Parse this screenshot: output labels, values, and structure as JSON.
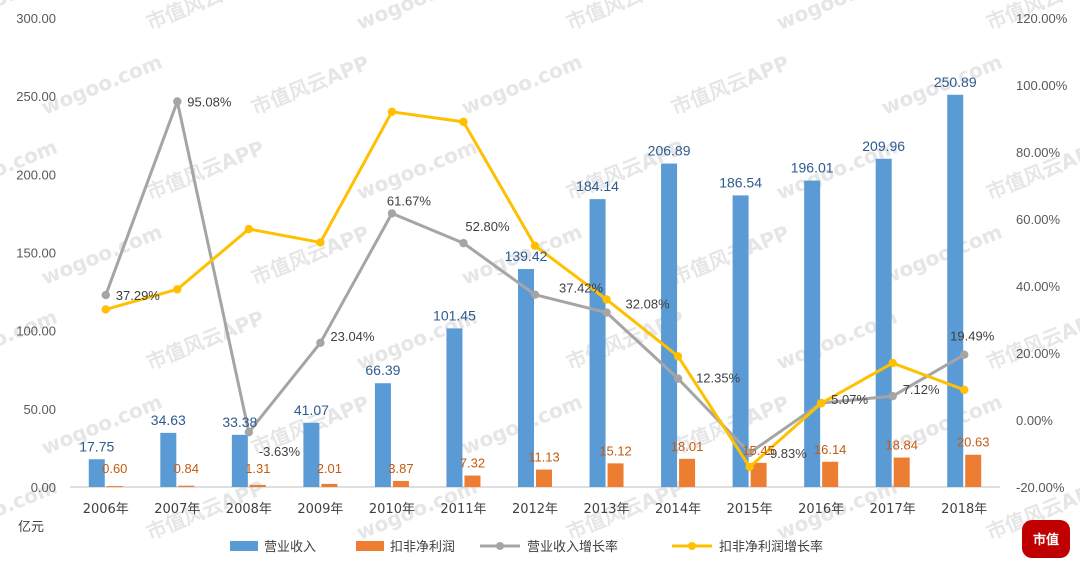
{
  "chart_data": {
    "type": "bar",
    "unit_label": "亿元",
    "categories": [
      "2006年",
      "2007年",
      "2008年",
      "2009年",
      "2010年",
      "2011年",
      "2012年",
      "2013年",
      "2014年",
      "2015年",
      "2016年",
      "2017年",
      "2018年"
    ],
    "left_axis": {
      "ylim": [
        0,
        300
      ],
      "ticks": [
        0,
        50,
        100,
        150,
        200,
        250,
        300
      ],
      "tick_labels": [
        "0.00",
        "50.00",
        "100.00",
        "150.00",
        "200.00",
        "250.00",
        "300.00"
      ]
    },
    "right_axis": {
      "ylim": [
        -20,
        120
      ],
      "ticks": [
        -20,
        0,
        20,
        40,
        60,
        80,
        100,
        120
      ],
      "tick_labels": [
        "-20.00%",
        "0.00%",
        "20.00%",
        "40.00%",
        "60.00%",
        "80.00%",
        "100.00%",
        "120.00%"
      ]
    },
    "series": [
      {
        "name": "营业收入",
        "kind": "bar",
        "axis": "left",
        "color": "#5b9bd5",
        "values": [
          17.75,
          34.63,
          33.38,
          41.07,
          66.39,
          101.45,
          139.42,
          184.14,
          206.89,
          186.54,
          196.01,
          209.96,
          250.89
        ],
        "labels": [
          "17.75",
          "34.63",
          "33.38",
          "41.07",
          "66.39",
          "101.45",
          "139.42",
          "184.14",
          "206.89",
          "186.54",
          "196.01",
          "209.96",
          "250.89"
        ]
      },
      {
        "name": "扣非净利润",
        "kind": "bar",
        "axis": "left",
        "color": "#ed7d31",
        "values": [
          0.6,
          0.84,
          1.31,
          2.01,
          3.87,
          7.32,
          11.13,
          15.12,
          18.01,
          15.45,
          16.14,
          18.84,
          20.63
        ],
        "labels": [
          "0.60",
          "0.84",
          "1.31",
          "2.01",
          "3.87",
          "7.32",
          "11.13",
          "15.12",
          "18.01",
          "15.45",
          "16.14",
          "18.84",
          "20.63"
        ]
      },
      {
        "name": "营业收入增长率",
        "kind": "line",
        "axis": "right",
        "color": "#a5a5a5",
        "values": [
          37.29,
          95.08,
          -3.63,
          23.04,
          61.67,
          52.8,
          37.42,
          32.08,
          12.35,
          -9.83,
          5.07,
          7.12,
          19.49
        ],
        "labels": [
          "37.29%",
          "95.08%",
          "-3.63%",
          "23.04%",
          "61.67%",
          "52.80%",
          "37.42%",
          "32.08%",
          "12.35%",
          "-9.83%",
          "5.07%",
          "7.12%",
          "19.49%"
        ]
      },
      {
        "name": "扣非净利润增长率",
        "kind": "line",
        "axis": "right",
        "color": "#ffc000",
        "values": [
          33,
          39,
          57,
          53,
          92,
          89,
          52,
          36,
          19,
          -14,
          5,
          17,
          9
        ]
      }
    ]
  },
  "watermark": {
    "text_a": "wogoo.com",
    "text_b": "市值风云APP"
  },
  "logo": {
    "text": "市值"
  }
}
